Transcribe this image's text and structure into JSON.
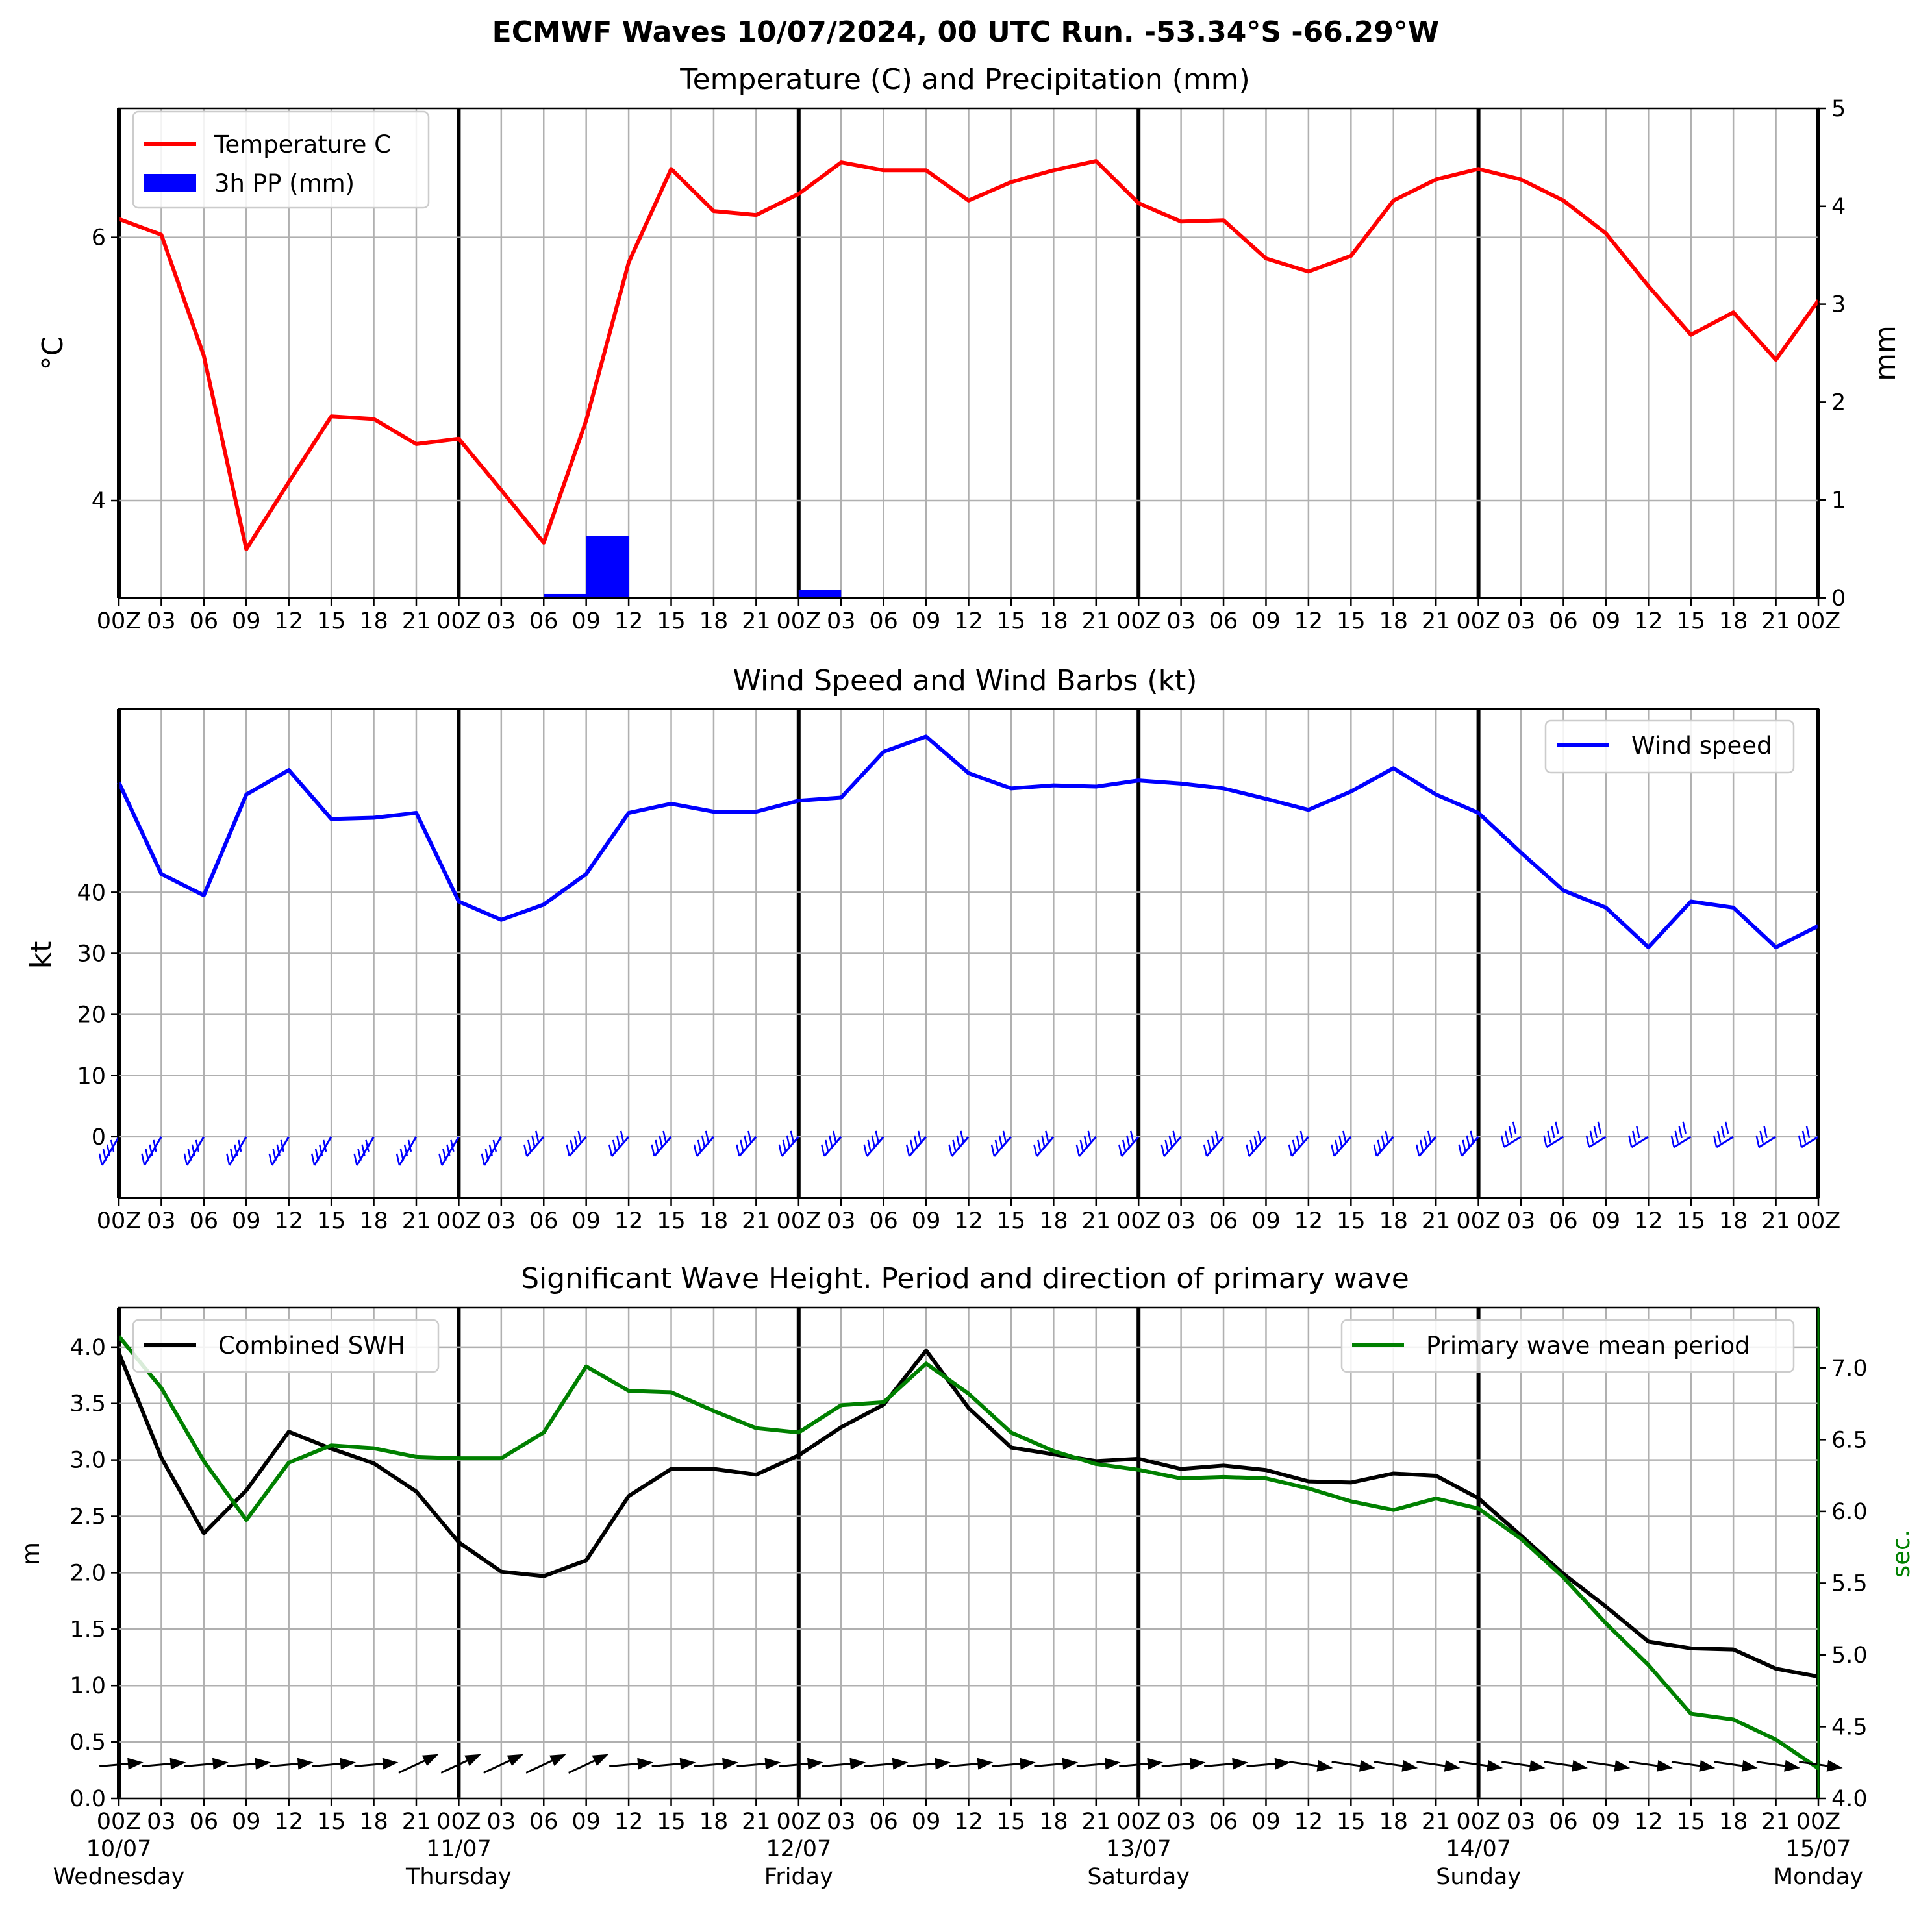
{
  "figure_title": "ECMWF Waves 10/07/2024, 00 UTC Run. -53.34°S -66.29°W",
  "time_axis": {
    "hour_ticks": [
      "00Z",
      "03",
      "06",
      "09",
      "12",
      "15",
      "18",
      "21",
      "00Z",
      "03",
      "06",
      "09",
      "12",
      "15",
      "18",
      "21",
      "00Z",
      "03",
      "06",
      "09",
      "12",
      "15",
      "18",
      "21",
      "00Z",
      "03",
      "06",
      "09",
      "12",
      "15",
      "18",
      "21",
      "00Z",
      "03",
      "06",
      "09",
      "12",
      "15",
      "18",
      "21",
      "00Z"
    ],
    "day_labels": [
      {
        "date": "10/07",
        "weekday": "Wednesday"
      },
      {
        "date": "11/07",
        "weekday": "Thursday"
      },
      {
        "date": "12/07",
        "weekday": "Friday"
      },
      {
        "date": "13/07",
        "weekday": "Saturday"
      },
      {
        "date": "14/07",
        "weekday": "Sunday"
      },
      {
        "date": "15/07",
        "weekday": "Monday"
      }
    ],
    "hours_from_start": [
      0,
      3,
      6,
      9,
      12,
      15,
      18,
      21,
      24,
      27,
      30,
      33,
      36,
      39,
      42,
      45,
      48,
      51,
      54,
      57,
      60,
      63,
      66,
      69,
      72,
      75,
      78,
      81,
      84,
      87,
      90,
      93,
      96,
      99,
      102,
      105,
      108,
      111,
      114,
      117,
      120
    ]
  },
  "chart_data": [
    {
      "type": "line",
      "title": "Temperature (C) and Precipitation (mm)",
      "ylabel": "°C",
      "ylabel_right": "mm",
      "ylim": [
        3.26,
        6.98
      ],
      "yticks": [
        4,
        6
      ],
      "ylim_right": [
        0,
        5
      ],
      "yticks_right": [
        0,
        1,
        2,
        3,
        4,
        5
      ],
      "grid": true,
      "legend_position": "upper-left",
      "series": [
        {
          "name": "Temperature C",
          "axis": "left",
          "color": "#ff0000",
          "values": [
            6.14,
            6.02,
            5.1,
            3.63,
            4.14,
            4.64,
            4.62,
            4.43,
            4.47,
            4.08,
            3.68,
            4.61,
            5.81,
            6.52,
            6.2,
            6.17,
            6.33,
            6.57,
            6.51,
            6.51,
            6.28,
            6.42,
            6.51,
            6.58,
            6.26,
            6.12,
            6.13,
            5.84,
            5.74,
            5.86,
            6.28,
            6.44,
            6.52,
            6.44,
            6.28,
            6.03,
            5.63,
            5.26,
            5.43,
            5.07,
            5.52
          ]
        },
        {
          "name": "3h PP (mm)",
          "axis": "right",
          "type": "bar",
          "color": "#0000ff",
          "bars": [
            {
              "start_hour": 30,
              "value": 0.04
            },
            {
              "start_hour": 33,
              "value": 0.63
            },
            {
              "start_hour": 48,
              "value": 0.08
            }
          ]
        }
      ]
    },
    {
      "type": "line",
      "title": "Wind Speed and Wind Barbs (kt)",
      "ylabel": "kt",
      "ylim": [
        -10,
        70
      ],
      "yticks": [
        0,
        10,
        20,
        30,
        40
      ],
      "grid": true,
      "legend_position": "upper-right",
      "series": [
        {
          "name": "Wind speed",
          "color": "#0000ff",
          "values": [
            58,
            43,
            39.5,
            56,
            60,
            52,
            52.2,
            53,
            38.5,
            35.5,
            38,
            43,
            53,
            54.5,
            53.2,
            53.2,
            55,
            55.5,
            63,
            65.5,
            59.5,
            57,
            57.5,
            57.3,
            58.3,
            57.8,
            57,
            55.3,
            53.5,
            56.5,
            60.3,
            56,
            53,
            46.5,
            40.3,
            37.5,
            31,
            38.5,
            37.5,
            31,
            34.5
          ]
        }
      ],
      "wind_barbs": {
        "color": "#0000ff",
        "baseline": 0
      }
    },
    {
      "type": "line",
      "title": "Significant Wave Height. Period and direction of primary wave",
      "ylabel": "m",
      "ylabel_right": "sec.",
      "ylim": [
        0,
        4.35
      ],
      "yticks": [
        0.0,
        0.5,
        1.0,
        1.5,
        2.0,
        2.5,
        3.0,
        3.5,
        4.0
      ],
      "ylim_right": [
        4.0,
        7.42
      ],
      "yticks_right": [
        4.0,
        4.5,
        5.0,
        5.5,
        6.0,
        6.5,
        7.0
      ],
      "grid": true,
      "series": [
        {
          "name": "Combined SWH",
          "axis": "left",
          "color": "#000000",
          "legend_position": "upper-left",
          "values": [
            3.95,
            3.02,
            2.35,
            2.73,
            3.25,
            3.1,
            2.97,
            2.72,
            2.27,
            2.01,
            1.97,
            2.11,
            2.68,
            2.92,
            2.92,
            2.87,
            3.04,
            3.29,
            3.49,
            3.97,
            3.46,
            3.11,
            3.05,
            2.99,
            3.01,
            2.92,
            2.95,
            2.91,
            2.81,
            2.8,
            2.88,
            2.86,
            2.66,
            2.33,
            1.99,
            1.7,
            1.39,
            1.33,
            1.32,
            1.15,
            1.08
          ]
        },
        {
          "name": "Primary wave mean period",
          "axis": "right",
          "color": "#008000",
          "legend_position": "upper-right",
          "values": [
            7.22,
            6.86,
            6.35,
            5.94,
            6.34,
            6.46,
            6.44,
            6.38,
            6.37,
            6.37,
            6.55,
            7.01,
            6.84,
            6.83,
            6.7,
            6.58,
            6.55,
            6.74,
            6.76,
            7.03,
            6.82,
            6.55,
            6.42,
            6.33,
            6.29,
            6.23,
            6.24,
            6.23,
            6.16,
            6.07,
            6.01,
            6.09,
            6.02,
            5.81,
            5.54,
            5.22,
            4.93,
            4.59,
            4.55,
            4.41,
            4.21
          ]
        }
      ],
      "direction_arrows": {
        "color": "#000000",
        "baseline_m": 0.3
      }
    }
  ]
}
